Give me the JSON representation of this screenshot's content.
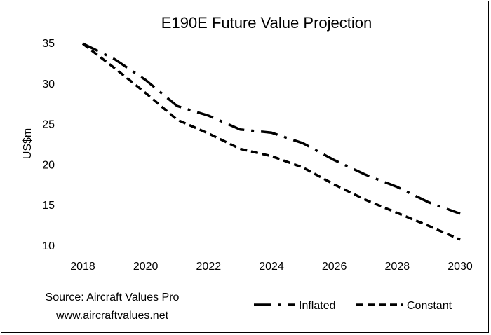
{
  "chart_data": {
    "type": "line",
    "title": "E190E Future Value Projection",
    "xlabel": "",
    "ylabel": "US$m",
    "xlim": [
      2018,
      2030
    ],
    "ylim": [
      10,
      35
    ],
    "x_ticks": [
      "2018",
      "2020",
      "2022",
      "2024",
      "2026",
      "2028",
      "2030"
    ],
    "y_ticks": [
      "10",
      "15",
      "20",
      "25",
      "30",
      "35"
    ],
    "grid": false,
    "legend_position": "bottom-right",
    "x": [
      2018,
      2019,
      2020,
      2021,
      2022,
      2023,
      2024,
      2025,
      2026,
      2027,
      2028,
      2029,
      2030
    ],
    "series": [
      {
        "name": "Inflated",
        "line_style": "dash-dot",
        "values": [
          34.9,
          33.0,
          30.4,
          27.2,
          26.0,
          24.3,
          23.9,
          22.6,
          20.5,
          18.7,
          17.2,
          15.3,
          13.9
        ]
      },
      {
        "name": "Constant",
        "line_style": "dashed",
        "values": [
          34.9,
          31.9,
          28.8,
          25.5,
          23.8,
          21.9,
          21.0,
          19.6,
          17.5,
          15.6,
          14.0,
          12.4,
          10.7
        ]
      }
    ],
    "source_lines": [
      "Source: Aircraft Values Pro",
      "www.aircraftvalues.net"
    ]
  }
}
